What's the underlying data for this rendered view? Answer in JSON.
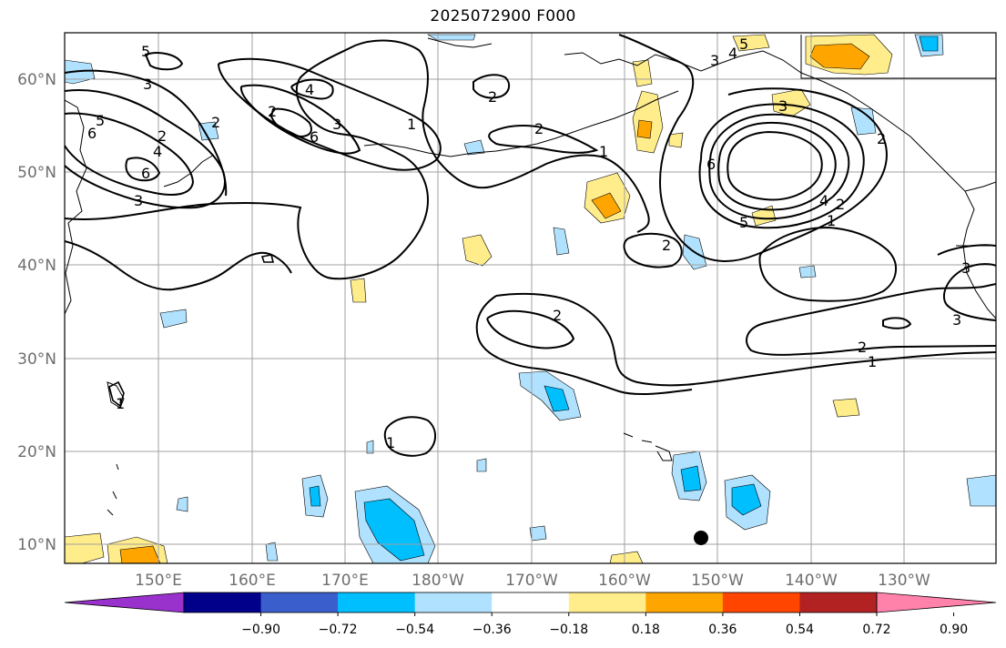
{
  "title": "2025072900 F000",
  "colors": {
    "grid": "#a0a0a0",
    "contour": "#000000",
    "coast": "#000000",
    "marker": "#000000"
  },
  "lat_ticks": [
    "10°N",
    "20°N",
    "30°N",
    "40°N",
    "50°N",
    "60°N"
  ],
  "lon_ticks": [
    "150°E",
    "160°E",
    "170°E",
    "180°W",
    "170°W",
    "160°W",
    "150°W",
    "140°W",
    "130°W"
  ],
  "colorbar": {
    "colors": [
      "#9932cc",
      "#00008b",
      "#3a5fcd",
      "#00bfff",
      "#b0e2ff",
      "#ffffff",
      "#ffec8b",
      "#ffa500",
      "#ff4500",
      "#b22222",
      "#ff82ab"
    ],
    "labels": [
      "−0.90",
      "−0.72",
      "−0.54",
      "−0.36",
      "−0.18",
      "0.18",
      "0.36",
      "0.54",
      "0.72",
      "0.90"
    ]
  },
  "contour_labels": [
    "5",
    "3",
    "5",
    "6",
    "2",
    "4",
    "3",
    "6",
    "2",
    "4",
    "3",
    "6",
    "2",
    "1",
    "2",
    "2",
    "1",
    "2",
    "4",
    "5",
    "3",
    "6",
    "4",
    "2",
    "1",
    "2",
    "5",
    "3",
    "3",
    "3",
    "2",
    "1",
    "2",
    "1",
    "1"
  ]
}
